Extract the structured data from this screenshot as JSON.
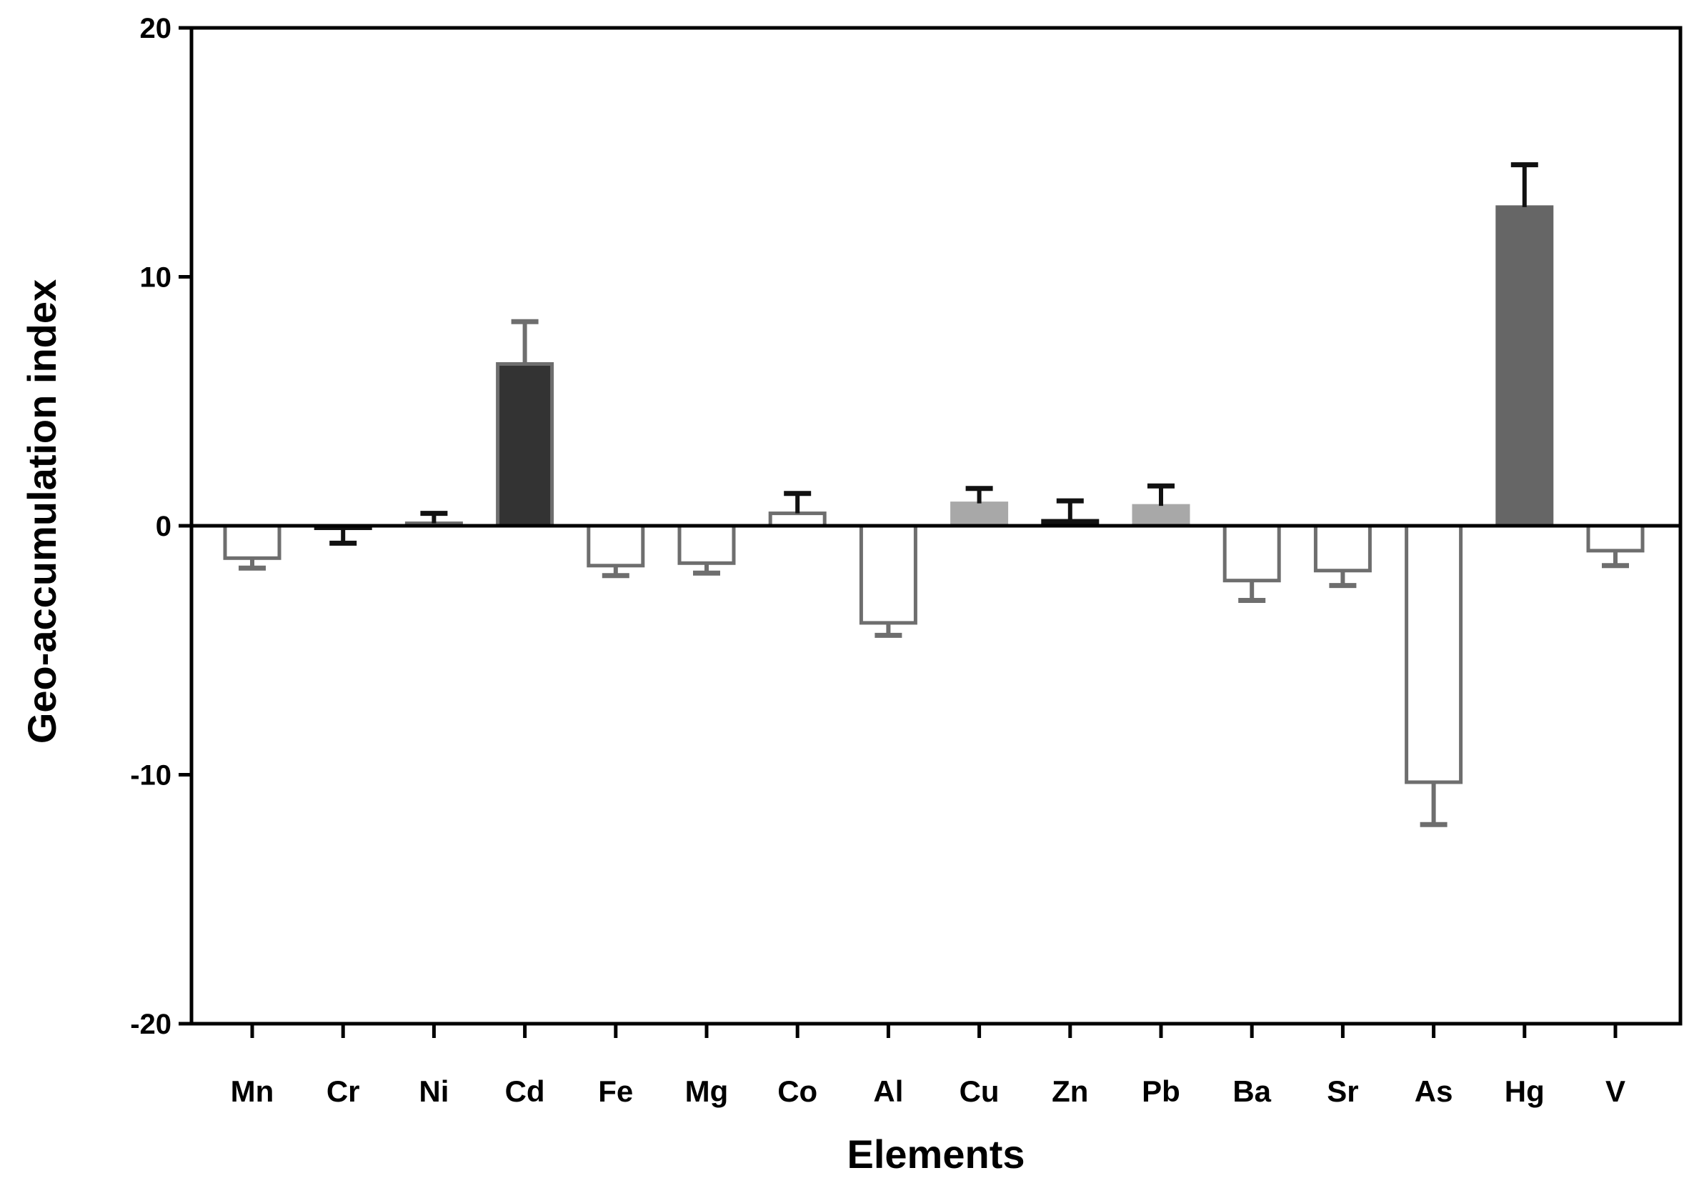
{
  "chart_data": {
    "type": "bar",
    "title": "",
    "xlabel": "Elements",
    "ylabel": "Geo-accumulation index",
    "ylim": [
      -20,
      20
    ],
    "yticks": [
      -20,
      -10,
      0,
      10,
      20
    ],
    "ytick_labels": [
      "-20",
      "-10",
      "0",
      "10",
      "20"
    ],
    "grid": false,
    "categories": [
      "Mn",
      "Cr",
      "Ni",
      "Cd",
      "Fe",
      "Mg",
      "Co",
      "Al",
      "Cu",
      "Zn",
      "Pb",
      "Ba",
      "Sr",
      "As",
      "Hg",
      "V"
    ],
    "values": [
      -1.3,
      -0.1,
      0.1,
      6.5,
      -1.6,
      -1.5,
      0.5,
      -3.9,
      0.9,
      0.2,
      0.8,
      -2.2,
      -1.8,
      -10.3,
      12.8,
      -1.0
    ],
    "errors": [
      0.4,
      0.6,
      0.4,
      1.7,
      0.4,
      0.4,
      0.8,
      0.5,
      0.6,
      0.8,
      0.8,
      0.8,
      0.6,
      1.7,
      1.7,
      0.6
    ],
    "bar_colors": [
      "#ffffff",
      "#ffffff",
      "#ffffff",
      "#333333",
      "#ffffff",
      "#ffffff",
      "#ffffff",
      "#ffffff",
      "#a8a8a8",
      "#111111",
      "#a8a8a8",
      "#ffffff",
      "#ffffff",
      "#ffffff",
      "#666666",
      "#ffffff"
    ],
    "edge_colors": [
      "#6e6e6e",
      "#111111",
      "#6e6e6e",
      "#6e6e6e",
      "#6e6e6e",
      "#6e6e6e",
      "#6e6e6e",
      "#6e6e6e",
      "#a8a8a8",
      "#111111",
      "#a8a8a8",
      "#6e6e6e",
      "#6e6e6e",
      "#6e6e6e",
      "#666666",
      "#6e6e6e"
    ],
    "error_colors": [
      "#6e6e6e",
      "#111111",
      "#111111",
      "#6e6e6e",
      "#6e6e6e",
      "#6e6e6e",
      "#111111",
      "#6e6e6e",
      "#111111",
      "#111111",
      "#111111",
      "#6e6e6e",
      "#6e6e6e",
      "#6e6e6e",
      "#111111",
      "#6e6e6e"
    ]
  }
}
